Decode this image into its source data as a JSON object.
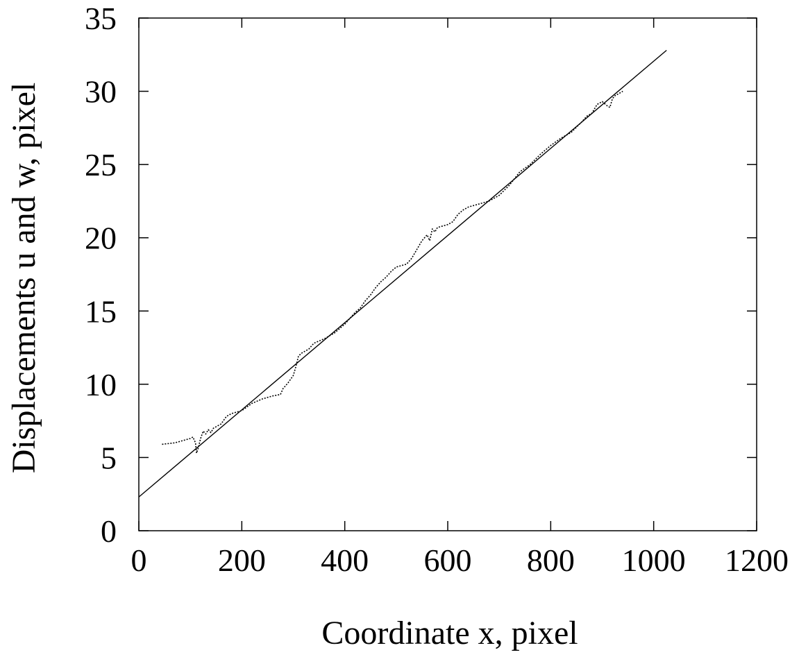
{
  "chart_data": {
    "type": "line",
    "title": "",
    "xlabel": "Coordinate x, pixel",
    "ylabel": "Displacements u and w, pixel",
    "xlim": [
      0,
      1200
    ],
    "ylim": [
      0,
      35
    ],
    "xticks": [
      0,
      200,
      400,
      600,
      800,
      1000,
      1200
    ],
    "yticks": [
      0,
      5,
      10,
      15,
      20,
      25,
      30,
      35
    ],
    "grid": false,
    "legend": "none",
    "colors": {
      "axis": "#000000",
      "line": "#000000"
    },
    "series": [
      {
        "style": "solid",
        "x": [
          0,
          1025
        ],
        "y": [
          2.3,
          32.8
        ]
      },
      {
        "style": "dotted",
        "x": [
          45,
          70,
          90,
          100,
          105,
          110,
          112,
          115,
          120,
          125,
          130,
          135,
          140,
          145,
          150,
          160,
          170,
          180,
          200,
          220,
          240,
          260,
          275,
          280,
          290,
          300,
          305,
          310,
          315,
          320,
          330,
          340,
          360,
          380,
          400,
          420,
          430,
          440,
          450,
          460,
          470,
          480,
          490,
          500,
          510,
          520,
          530,
          540,
          550,
          560,
          565,
          570,
          575,
          580,
          590,
          600,
          610,
          620,
          630,
          640,
          660,
          680,
          700,
          720,
          740,
          760,
          780,
          800,
          820,
          840,
          860,
          870,
          880,
          890,
          900,
          910,
          915,
          920,
          925,
          930,
          940
        ],
        "y": [
          5.9,
          6.0,
          6.2,
          6.3,
          6.4,
          6.0,
          5.3,
          5.6,
          6.3,
          6.8,
          6.6,
          6.9,
          6.7,
          7.0,
          7.1,
          7.3,
          7.8,
          8.0,
          8.2,
          8.7,
          9.0,
          9.2,
          9.3,
          9.7,
          10.1,
          10.6,
          11.2,
          11.9,
          12.1,
          12.2,
          12.4,
          12.8,
          13.1,
          13.5,
          14.1,
          14.9,
          15.2,
          15.7,
          16.1,
          16.6,
          17.0,
          17.3,
          17.7,
          18.0,
          18.1,
          18.2,
          18.6,
          19.2,
          19.8,
          20.2,
          19.8,
          20.6,
          20.4,
          20.7,
          20.8,
          20.9,
          21.1,
          21.6,
          21.9,
          22.1,
          22.3,
          22.5,
          22.9,
          23.6,
          24.5,
          25.0,
          25.7,
          26.3,
          26.8,
          27.2,
          27.9,
          28.3,
          28.5,
          29.1,
          29.3,
          29.0,
          28.9,
          29.5,
          29.7,
          29.8,
          30.0
        ]
      }
    ]
  }
}
